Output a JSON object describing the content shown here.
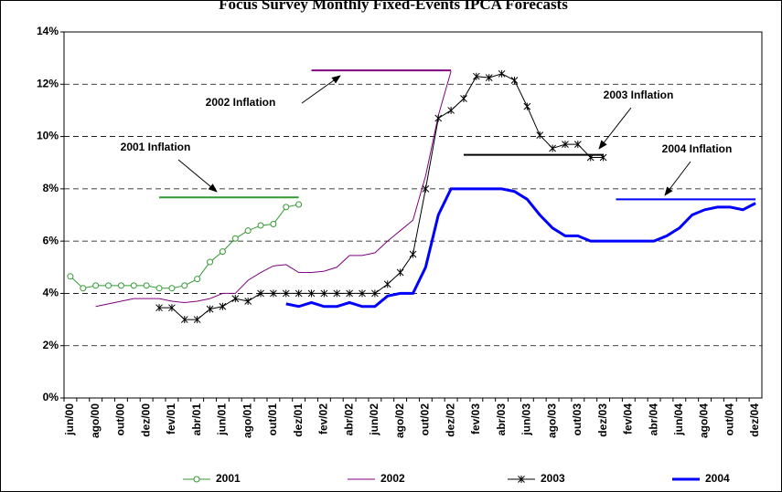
{
  "chart_data": {
    "type": "line",
    "title": "Focus Survey Monthly Fixed-Events IPCA Forecasts",
    "categories": [
      "jun/00",
      null,
      "ago/00",
      null,
      "out/00",
      null,
      "dez/00",
      null,
      "fev/01",
      null,
      "abr/01",
      null,
      "jun/01",
      null,
      "ago/01",
      null,
      "out/01",
      null,
      "dez/01",
      null,
      "fev/02",
      null,
      "abr/02",
      null,
      "jun/02",
      null,
      "ago/02",
      null,
      "out/02",
      null,
      "dez/02",
      null,
      "fev/03",
      null,
      "abr/03",
      null,
      "jun/03",
      null,
      "ago/03",
      null,
      "out/03",
      null,
      "dez/03",
      null,
      "fev/04",
      null,
      "abr/04",
      null,
      "jun/04",
      null,
      "ago/04",
      null,
      "out/04",
      null,
      "dez/04"
    ],
    "ylim": [
      0,
      14
    ],
    "yticks": [
      {
        "value": 0,
        "label": "0%"
      },
      {
        "value": 2,
        "label": "2%"
      },
      {
        "value": 4,
        "label": "4%"
      },
      {
        "value": 6,
        "label": "6%"
      },
      {
        "value": 8,
        "label": "8%"
      },
      {
        "value": 10,
        "label": "10%"
      },
      {
        "value": 12,
        "label": "12%"
      },
      {
        "value": 14,
        "label": "14%"
      }
    ],
    "grid": true,
    "legend": "bottom",
    "series": [
      {
        "name": "2001",
        "color": "#339933",
        "width": 1,
        "marker": "circle",
        "values": [
          4.65,
          4.2,
          4.3,
          4.3,
          4.3,
          4.3,
          4.3,
          4.2,
          4.2,
          4.3,
          4.55,
          5.2,
          5.6,
          6.1,
          6.4,
          6.6,
          6.65,
          7.3,
          7.4,
          null,
          null,
          null,
          null,
          null,
          null,
          null,
          null,
          null,
          null,
          null,
          null,
          null,
          null,
          null,
          null,
          null,
          null,
          null,
          null,
          null,
          null,
          null,
          null,
          null,
          null,
          null,
          null,
          null,
          null,
          null,
          null,
          null,
          null,
          null,
          null
        ]
      },
      {
        "name": "2002",
        "color": "#800080",
        "width": 1,
        "marker": "none",
        "values": [
          null,
          null,
          3.5,
          3.6,
          3.7,
          3.8,
          3.8,
          3.8,
          3.7,
          3.65,
          3.7,
          3.8,
          4.0,
          4.0,
          4.5,
          4.8,
          5.05,
          5.1,
          4.8,
          4.8,
          4.85,
          5.0,
          5.45,
          5.45,
          5.55,
          6.0,
          6.4,
          6.8,
          8.5,
          10.8,
          12.5,
          null,
          null,
          null,
          null,
          null,
          null,
          null,
          null,
          null,
          null,
          null,
          null,
          null,
          null,
          null,
          null,
          null,
          null,
          null,
          null,
          null,
          null,
          null,
          null
        ]
      },
      {
        "name": "2003",
        "color": "#000000",
        "width": 1,
        "marker": "star",
        "values": [
          null,
          null,
          null,
          null,
          null,
          null,
          null,
          3.45,
          3.45,
          3.0,
          3.0,
          3.4,
          3.5,
          3.8,
          3.7,
          4.0,
          4.0,
          4.0,
          4.0,
          4.0,
          4.0,
          4.0,
          4.0,
          4.0,
          4.0,
          4.35,
          4.8,
          5.5,
          8.0,
          10.7,
          11.0,
          11.45,
          12.3,
          12.25,
          12.4,
          12.15,
          11.15,
          10.05,
          9.55,
          9.7,
          9.7,
          9.2,
          9.2,
          null,
          null,
          null,
          null,
          null,
          null,
          null,
          null,
          null,
          null,
          null,
          null
        ]
      },
      {
        "name": "2004",
        "color": "#0000ff",
        "width": 3,
        "marker": "none",
        "values": [
          null,
          null,
          null,
          null,
          null,
          null,
          null,
          null,
          null,
          null,
          null,
          null,
          null,
          null,
          null,
          null,
          null,
          3.6,
          3.5,
          3.65,
          3.5,
          3.5,
          3.65,
          3.5,
          3.5,
          3.9,
          4.0,
          4.0,
          5.0,
          7.0,
          8.0,
          8.0,
          8.0,
          8.0,
          8.0,
          7.9,
          7.6,
          7.0,
          6.5,
          6.2,
          6.2,
          6.0,
          6.0,
          6.0,
          6.0,
          6.0,
          6.0,
          6.2,
          6.5,
          7.0,
          7.2,
          7.3,
          7.3,
          7.2,
          7.45
        ]
      }
    ],
    "annotations": [
      {
        "text": "2001 Inflation",
        "value": 7.67,
        "color": "#339933",
        "start": 7,
        "end": 18
      },
      {
        "text": "2002 Inflation",
        "value": 12.53,
        "color": "#800080",
        "start": 19,
        "end": 30
      },
      {
        "text": "2003 Inflation",
        "value": 9.3,
        "color": "#000000",
        "start": 31,
        "end": 42
      },
      {
        "text": "2004 Inflation",
        "value": 7.6,
        "color": "#0000ff",
        "start": 43,
        "end": 54
      }
    ]
  }
}
